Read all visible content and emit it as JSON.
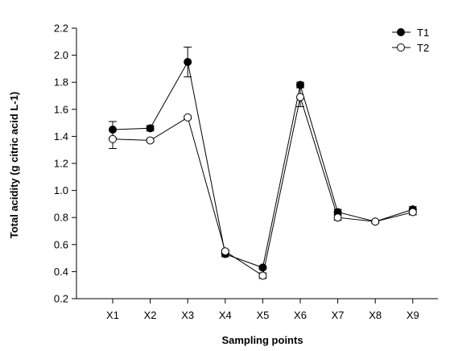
{
  "chart_data": {
    "type": "line",
    "title": "",
    "xlabel": "Sampling points",
    "ylabel": "Total acidity (g citric acid L-1)",
    "categories": [
      "X1",
      "X2",
      "X3",
      "X4",
      "X5",
      "X6",
      "X7",
      "X8",
      "X9"
    ],
    "ylim": [
      0.2,
      2.2
    ],
    "yticks": [
      "0.2",
      "0.4",
      "0.6",
      "0.8",
      "1.0",
      "1.2",
      "1.4",
      "1.6",
      "1.8",
      "2.0",
      "2.2"
    ],
    "grid": false,
    "legend_position": "top-right",
    "series": [
      {
        "name": "T1",
        "marker": "filled-circle",
        "color": "#000000",
        "values": [
          1.45,
          1.46,
          1.95,
          0.53,
          0.43,
          1.78,
          0.84,
          0.77,
          0.86
        ],
        "errors": [
          0.06,
          0.02,
          0.11,
          0.02,
          0.01,
          0.02,
          0.02,
          0.01,
          0.02
        ]
      },
      {
        "name": "T2",
        "marker": "open-circle",
        "color": "#000000",
        "values": [
          1.38,
          1.37,
          1.54,
          0.55,
          0.37,
          1.69,
          0.8,
          0.77,
          0.84
        ],
        "errors": [
          0.07,
          0.01,
          0.01,
          0.01,
          0.02,
          0.07,
          0.02,
          0.01,
          0.02
        ]
      }
    ]
  }
}
